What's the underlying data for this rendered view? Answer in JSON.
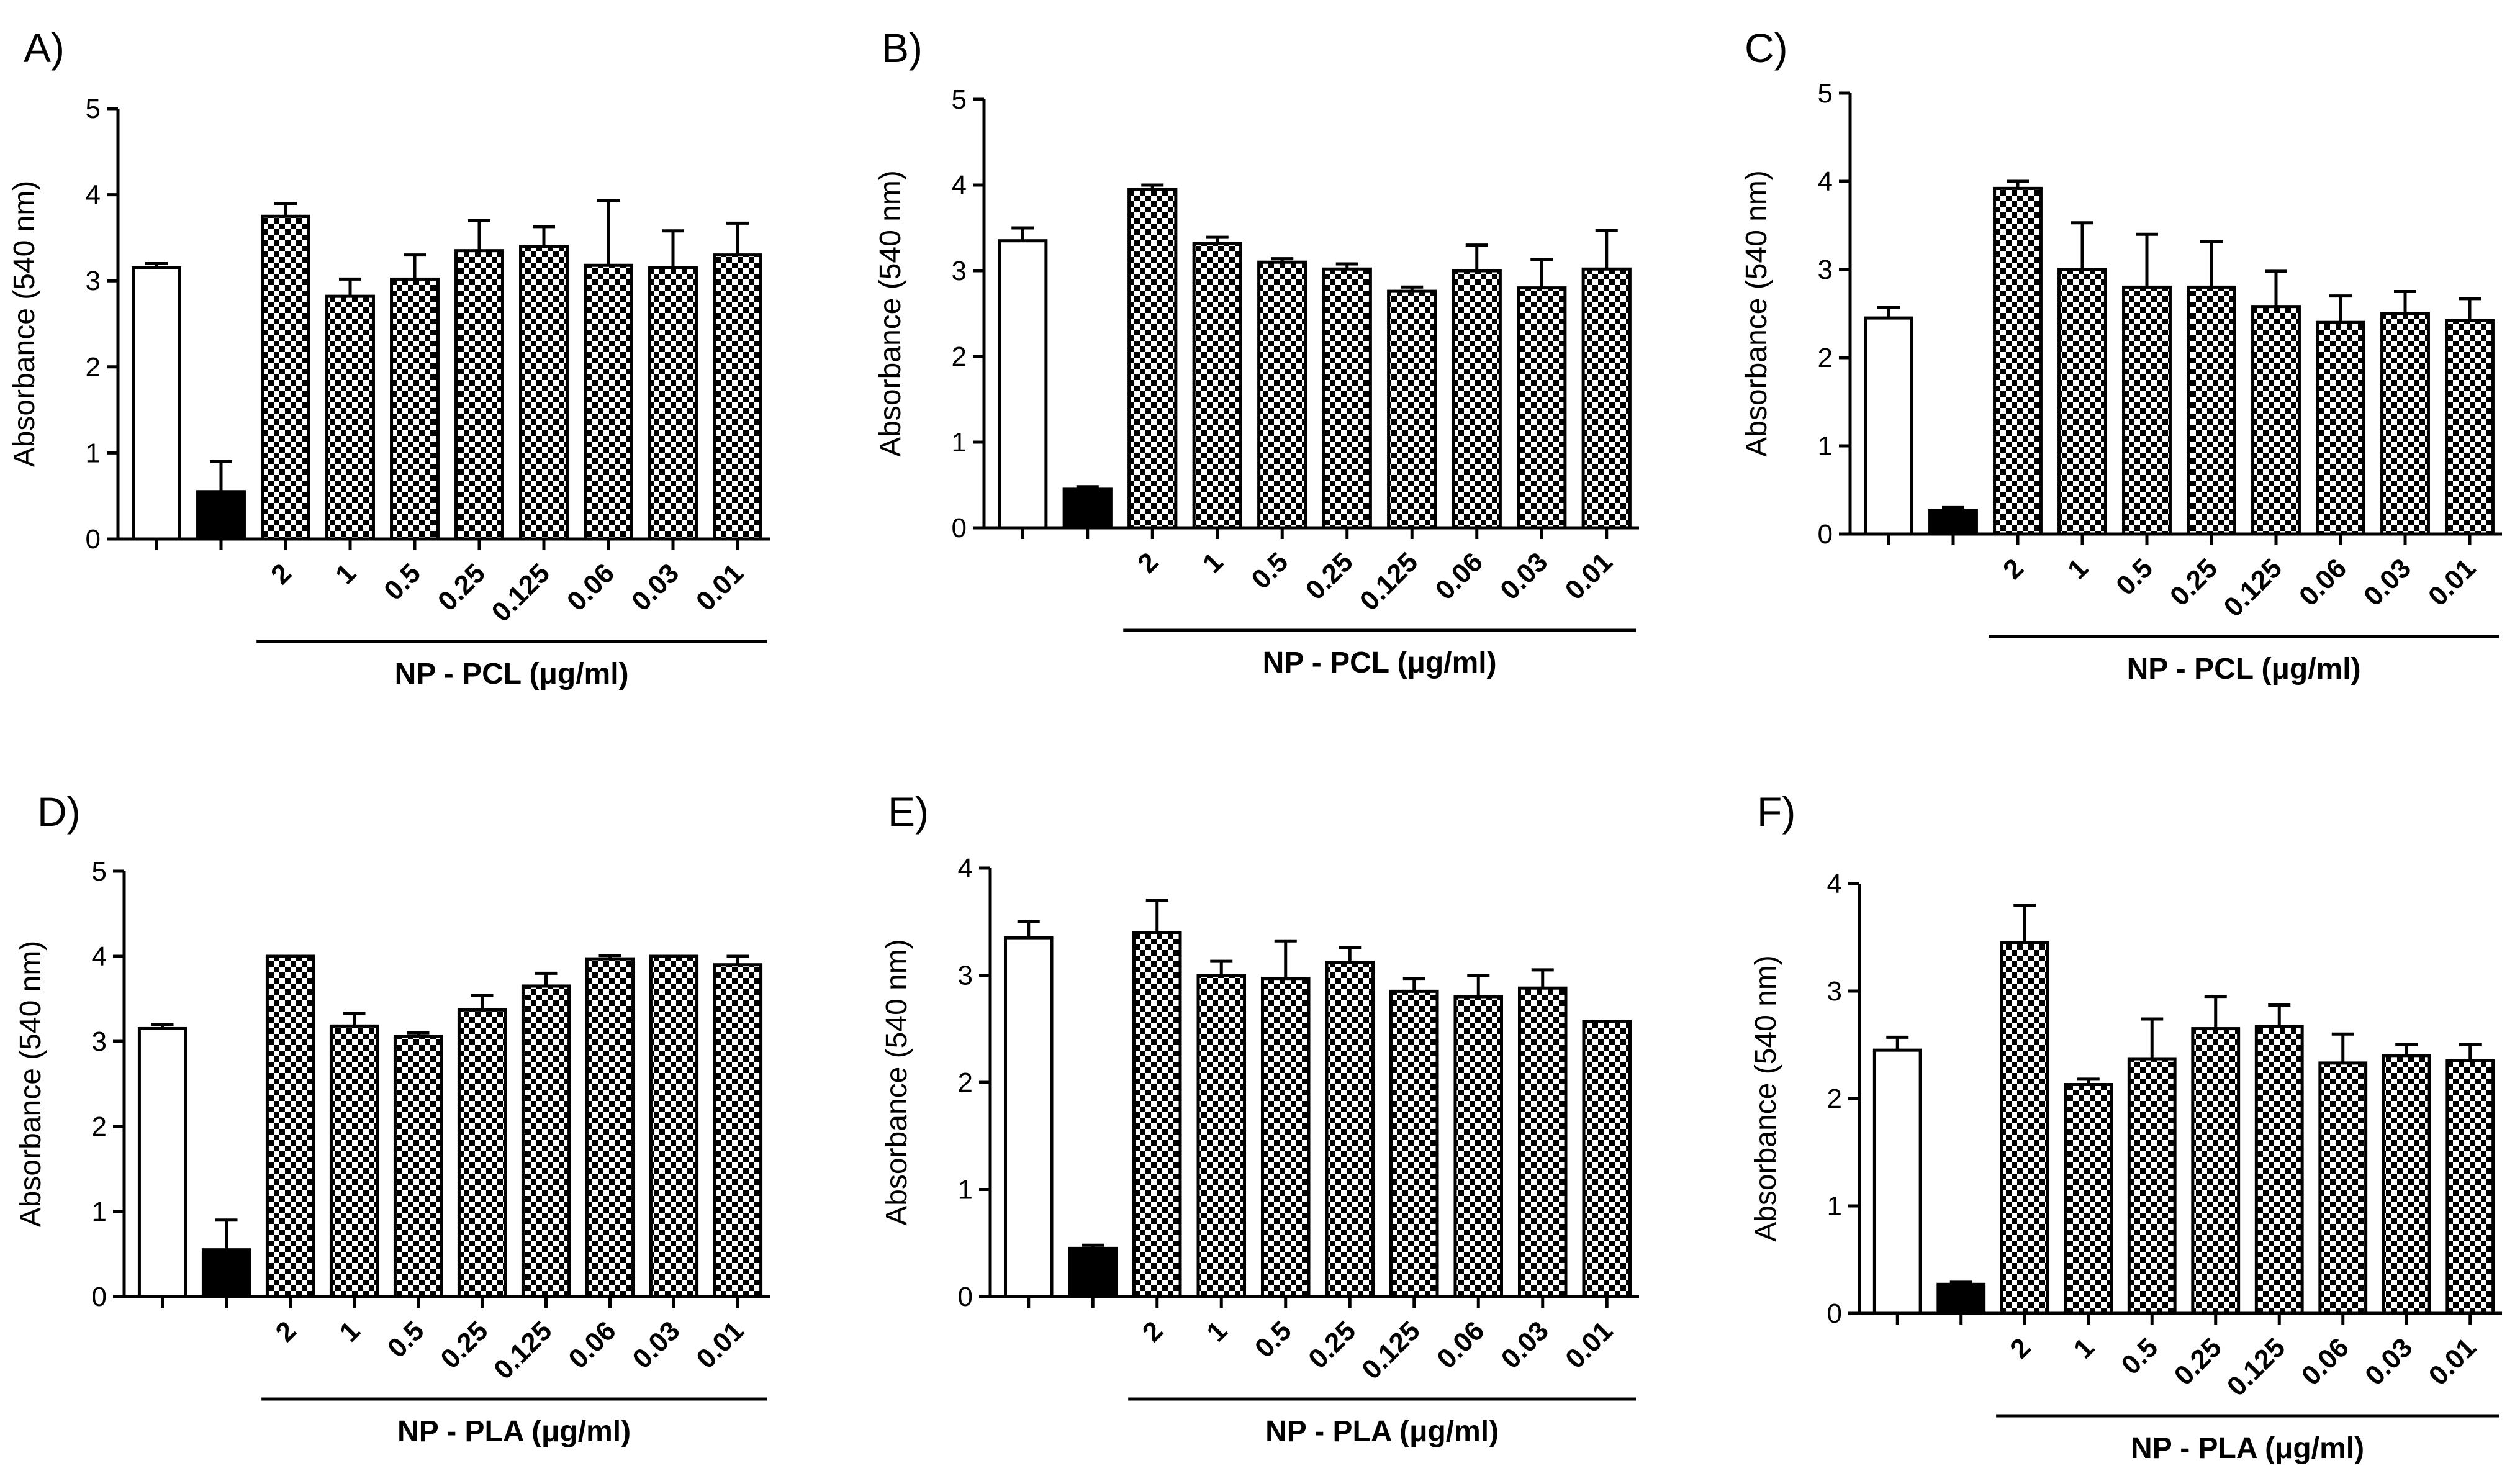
{
  "chart_data": [
    {
      "panel": "A)",
      "type": "bar",
      "ylabel": "Absorbance (540 nm)",
      "xlabel": "NP - PCL (μg/ml)",
      "ylim": [
        0,
        5
      ],
      "yticks": [
        "0",
        "1",
        "2",
        "3",
        "4",
        "5"
      ],
      "categories": [
        "",
        "",
        "2",
        "1",
        "0.5",
        "0.25",
        "0.125",
        "0.06",
        "0.03",
        "0.01"
      ],
      "fills": [
        "white",
        "black",
        "checker",
        "checker",
        "checker",
        "checker",
        "checker",
        "checker",
        "checker",
        "checker"
      ],
      "values": [
        3.15,
        0.55,
        3.75,
        2.82,
        3.02,
        3.35,
        3.4,
        3.18,
        3.15,
        3.3
      ],
      "errors": [
        0.05,
        0.35,
        0.15,
        0.2,
        0.28,
        0.35,
        0.23,
        0.75,
        0.43,
        0.37
      ]
    },
    {
      "panel": "B)",
      "type": "bar",
      "ylabel": "Absorbance (540 nm)",
      "xlabel": "NP - PCL (μg/ml)",
      "ylim": [
        0,
        5
      ],
      "yticks": [
        "0",
        "1",
        "2",
        "3",
        "4",
        "5"
      ],
      "categories": [
        "",
        "",
        "2",
        "1",
        "0.5",
        "0.25",
        "0.125",
        "0.06",
        "0.03",
        "0.01"
      ],
      "fills": [
        "white",
        "black",
        "checker",
        "checker",
        "checker",
        "checker",
        "checker",
        "checker",
        "checker",
        "checker"
      ],
      "values": [
        3.35,
        0.45,
        3.95,
        3.32,
        3.1,
        3.02,
        2.76,
        3.0,
        2.8,
        3.02
      ],
      "errors": [
        0.15,
        0.03,
        0.05,
        0.07,
        0.04,
        0.06,
        0.05,
        0.3,
        0.33,
        0.45
      ]
    },
    {
      "panel": "C)",
      "type": "bar",
      "ylabel": "Absorbance (540 nm)",
      "xlabel": "NP - PCL (μg/ml)",
      "ylim": [
        0,
        5
      ],
      "yticks": [
        "0",
        "1",
        "2",
        "3",
        "4",
        "5"
      ],
      "categories": [
        "",
        "",
        "2",
        "1",
        "0.5",
        "0.25",
        "0.125",
        "0.06",
        "0.03",
        "0.01"
      ],
      "fills": [
        "white",
        "black",
        "checker",
        "checker",
        "checker",
        "checker",
        "checker",
        "checker",
        "checker",
        "checker"
      ],
      "values": [
        2.45,
        0.27,
        3.92,
        3.0,
        2.8,
        2.8,
        2.58,
        2.4,
        2.5,
        2.42
      ],
      "errors": [
        0.12,
        0.03,
        0.08,
        0.53,
        0.6,
        0.52,
        0.4,
        0.3,
        0.25,
        0.25
      ]
    },
    {
      "panel": "D)",
      "type": "bar",
      "ylabel": "Absorbance (540 nm)",
      "xlabel": "NP - PLA (μg/ml)",
      "ylim": [
        0,
        5
      ],
      "yticks": [
        "0",
        "1",
        "2",
        "3",
        "4",
        "5"
      ],
      "categories": [
        "",
        "",
        "2",
        "1",
        "0.5",
        "0.25",
        "0.125",
        "0.06",
        "0.03",
        "0.01"
      ],
      "fills": [
        "white",
        "black",
        "checker",
        "checker",
        "checker",
        "checker",
        "checker",
        "checker",
        "checker",
        "checker"
      ],
      "values": [
        3.15,
        0.55,
        4.0,
        3.18,
        3.06,
        3.37,
        3.65,
        3.97,
        4.0,
        3.9
      ],
      "errors": [
        0.05,
        0.35,
        0.0,
        0.15,
        0.04,
        0.17,
        0.15,
        0.04,
        0.0,
        0.1
      ]
    },
    {
      "panel": "E)",
      "type": "bar",
      "ylabel": "Absorbance (540 nm)",
      "xlabel": "NP - PLA (μg/ml)",
      "ylim": [
        0,
        4
      ],
      "yticks": [
        "0",
        "1",
        "2",
        "3",
        "4"
      ],
      "categories": [
        "",
        "",
        "2",
        "1",
        "0.5",
        "0.25",
        "0.125",
        "0.06",
        "0.03",
        "0.01"
      ],
      "fills": [
        "white",
        "black",
        "checker",
        "checker",
        "checker",
        "checker",
        "checker",
        "checker",
        "checker",
        "checker"
      ],
      "values": [
        3.35,
        0.45,
        3.4,
        3.0,
        2.97,
        3.12,
        2.85,
        2.8,
        2.88,
        2.57
      ],
      "errors": [
        0.15,
        0.03,
        0.3,
        0.13,
        0.35,
        0.14,
        0.12,
        0.2,
        0.17,
        0.0
      ]
    },
    {
      "panel": "F)",
      "type": "bar",
      "ylabel": "Absorbance (540 nm)",
      "xlabel": "NP - PLA (μg/ml)",
      "ylim": [
        0,
        4
      ],
      "yticks": [
        "0",
        "1",
        "2",
        "3",
        "4"
      ],
      "categories": [
        "",
        "",
        "2",
        "1",
        "0.5",
        "0.25",
        "0.125",
        "0.06",
        "0.03",
        "0.01"
      ],
      "fills": [
        "white",
        "black",
        "checker",
        "checker",
        "checker",
        "checker",
        "checker",
        "checker",
        "checker",
        "checker"
      ],
      "values": [
        2.45,
        0.27,
        3.45,
        2.13,
        2.37,
        2.65,
        2.67,
        2.33,
        2.4,
        2.35
      ],
      "errors": [
        0.12,
        0.02,
        0.35,
        0.05,
        0.37,
        0.3,
        0.2,
        0.27,
        0.1,
        0.15
      ]
    }
  ]
}
